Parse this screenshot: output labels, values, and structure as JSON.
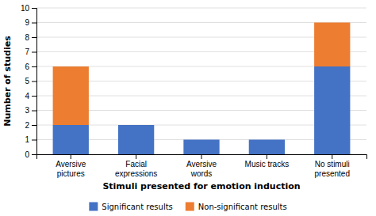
{
  "chart_data": {
    "type": "bar",
    "stacked": true,
    "categories": [
      "Aversive\npictures",
      "Facial\nexpressions",
      "Aversive\nwords",
      "Music tracks",
      "No stimuli\npresented"
    ],
    "series": [
      {
        "name": "Significant results",
        "color": "#4472C4",
        "values": [
          2,
          2,
          1,
          1,
          6
        ]
      },
      {
        "name": "Non-significant results",
        "color": "#ED7D31",
        "values": [
          4,
          0,
          0,
          0,
          3
        ]
      }
    ],
    "xlabel": "Stimuli presented for emotion induction",
    "ylabel": "Number of studies",
    "ylim": [
      0,
      10
    ],
    "yticks": [
      0,
      1,
      2,
      3,
      4,
      5,
      6,
      7,
      8,
      9,
      10
    ],
    "grid": true,
    "legend": "bottom"
  }
}
